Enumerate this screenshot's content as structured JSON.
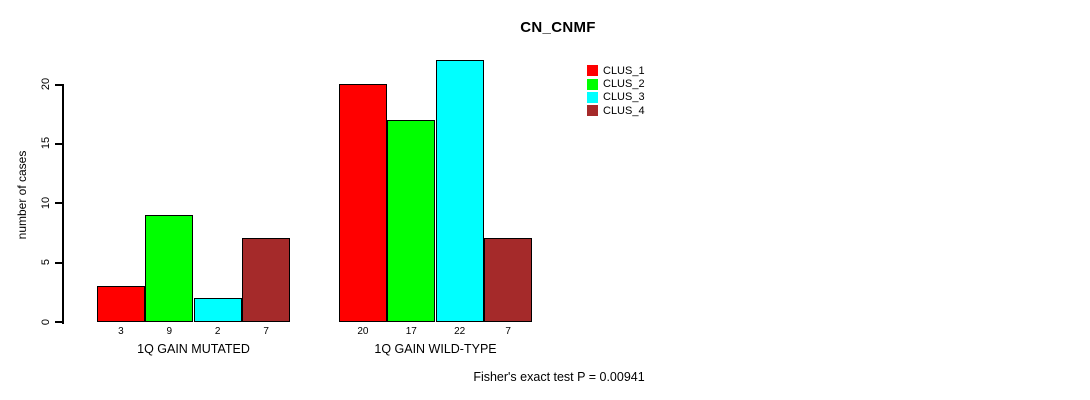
{
  "chart_data": {
    "type": "bar",
    "title": "CN_CNMF",
    "xlabel": "",
    "ylabel": "number of cases",
    "ylim": [
      0,
      22
    ],
    "yticks": [
      0,
      5,
      10,
      15,
      20
    ],
    "grid": false,
    "legend_position": "top-right",
    "bar_value_labels_shown": true,
    "categories": [
      "1Q GAIN MUTATED",
      "1Q GAIN WILD-TYPE"
    ],
    "series": [
      {
        "name": "CLUS_1",
        "color": "#FF0000",
        "values": [
          3,
          20
        ]
      },
      {
        "name": "CLUS_2",
        "color": "#00FF00",
        "values": [
          9,
          17
        ]
      },
      {
        "name": "CLUS_3",
        "color": "#00FFFF",
        "values": [
          2,
          22
        ]
      },
      {
        "name": "CLUS_4",
        "color": "#A52A2A",
        "values": [
          7,
          7
        ]
      }
    ],
    "annotation": "Fisher's exact test P = 0.00941"
  }
}
